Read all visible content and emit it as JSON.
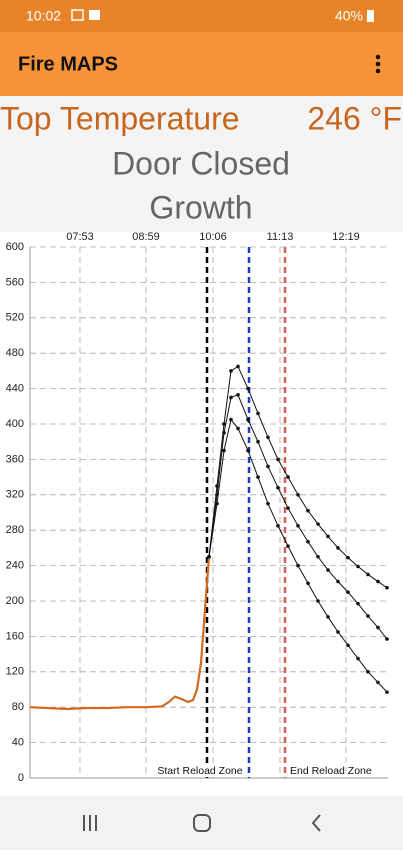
{
  "status_bar": {
    "time": "10:02",
    "battery": "40%"
  },
  "app_bar": {
    "title": "Fire MAPS"
  },
  "header": {
    "label": "Top Temperature",
    "temperature": "246 °F",
    "line1": "Door Closed",
    "line2": "Growth"
  },
  "chart_data": {
    "type": "line",
    "xlim": [
      423,
      781
    ],
    "ylim": [
      0,
      600
    ],
    "xticks": [
      {
        "value": 473,
        "label": "07:53"
      },
      {
        "value": 539,
        "label": "08:59"
      },
      {
        "value": 606,
        "label": "10:06"
      },
      {
        "value": 673,
        "label": "11:13"
      },
      {
        "value": 739,
        "label": "12:19"
      }
    ],
    "yticks": [
      0,
      40,
      80,
      120,
      160,
      200,
      240,
      280,
      320,
      360,
      400,
      440,
      480,
      520,
      560,
      600
    ],
    "grid": true,
    "series": [
      {
        "color": "#d2691e",
        "markers": false,
        "x": [
          423,
          440,
          460,
          480,
          500,
          520,
          540,
          555,
          562,
          568,
          575,
          581,
          586,
          590,
          594,
          597,
          600,
          602
        ],
        "values": [
          80,
          79,
          78,
          79,
          79,
          80,
          80,
          81,
          86,
          92,
          89,
          86,
          88,
          100,
          130,
          175,
          220,
          250
        ]
      },
      {
        "color": "#111111",
        "markers": true,
        "x": [
          602,
          610,
          617,
          624,
          631,
          641,
          651,
          661,
          671,
          681,
          691,
          701,
          711,
          721,
          731,
          741,
          751,
          761,
          771,
          780
        ],
        "values": [
          250,
          330,
          400,
          460,
          465,
          440,
          412,
          385,
          360,
          340,
          320,
          302,
          287,
          273,
          260,
          249,
          239,
          230,
          222,
          215
        ]
      },
      {
        "color": "#111111",
        "markers": true,
        "x": [
          602,
          610,
          617,
          624,
          631,
          641,
          651,
          661,
          671,
          681,
          691,
          701,
          711,
          721,
          731,
          741,
          751,
          761,
          771,
          780
        ],
        "values": [
          250,
          320,
          390,
          430,
          433,
          405,
          380,
          352,
          328,
          305,
          285,
          267,
          250,
          235,
          222,
          210,
          197,
          183,
          170,
          157
        ]
      },
      {
        "color": "#111111",
        "markers": true,
        "x": [
          602,
          610,
          617,
          624,
          631,
          641,
          651,
          661,
          671,
          681,
          691,
          701,
          711,
          721,
          731,
          741,
          751,
          761,
          771,
          780
        ],
        "values": [
          250,
          310,
          370,
          405,
          395,
          370,
          340,
          310,
          285,
          262,
          240,
          220,
          200,
          182,
          165,
          150,
          135,
          120,
          108,
          97
        ]
      }
    ],
    "vlines": [
      {
        "x": 600,
        "color": "#000000",
        "label": "Start Reload Zone"
      },
      {
        "x": 642,
        "color": "#1a3fc0"
      },
      {
        "x": 678,
        "color": "#d0605a",
        "label": "End Reload Zone"
      }
    ]
  }
}
